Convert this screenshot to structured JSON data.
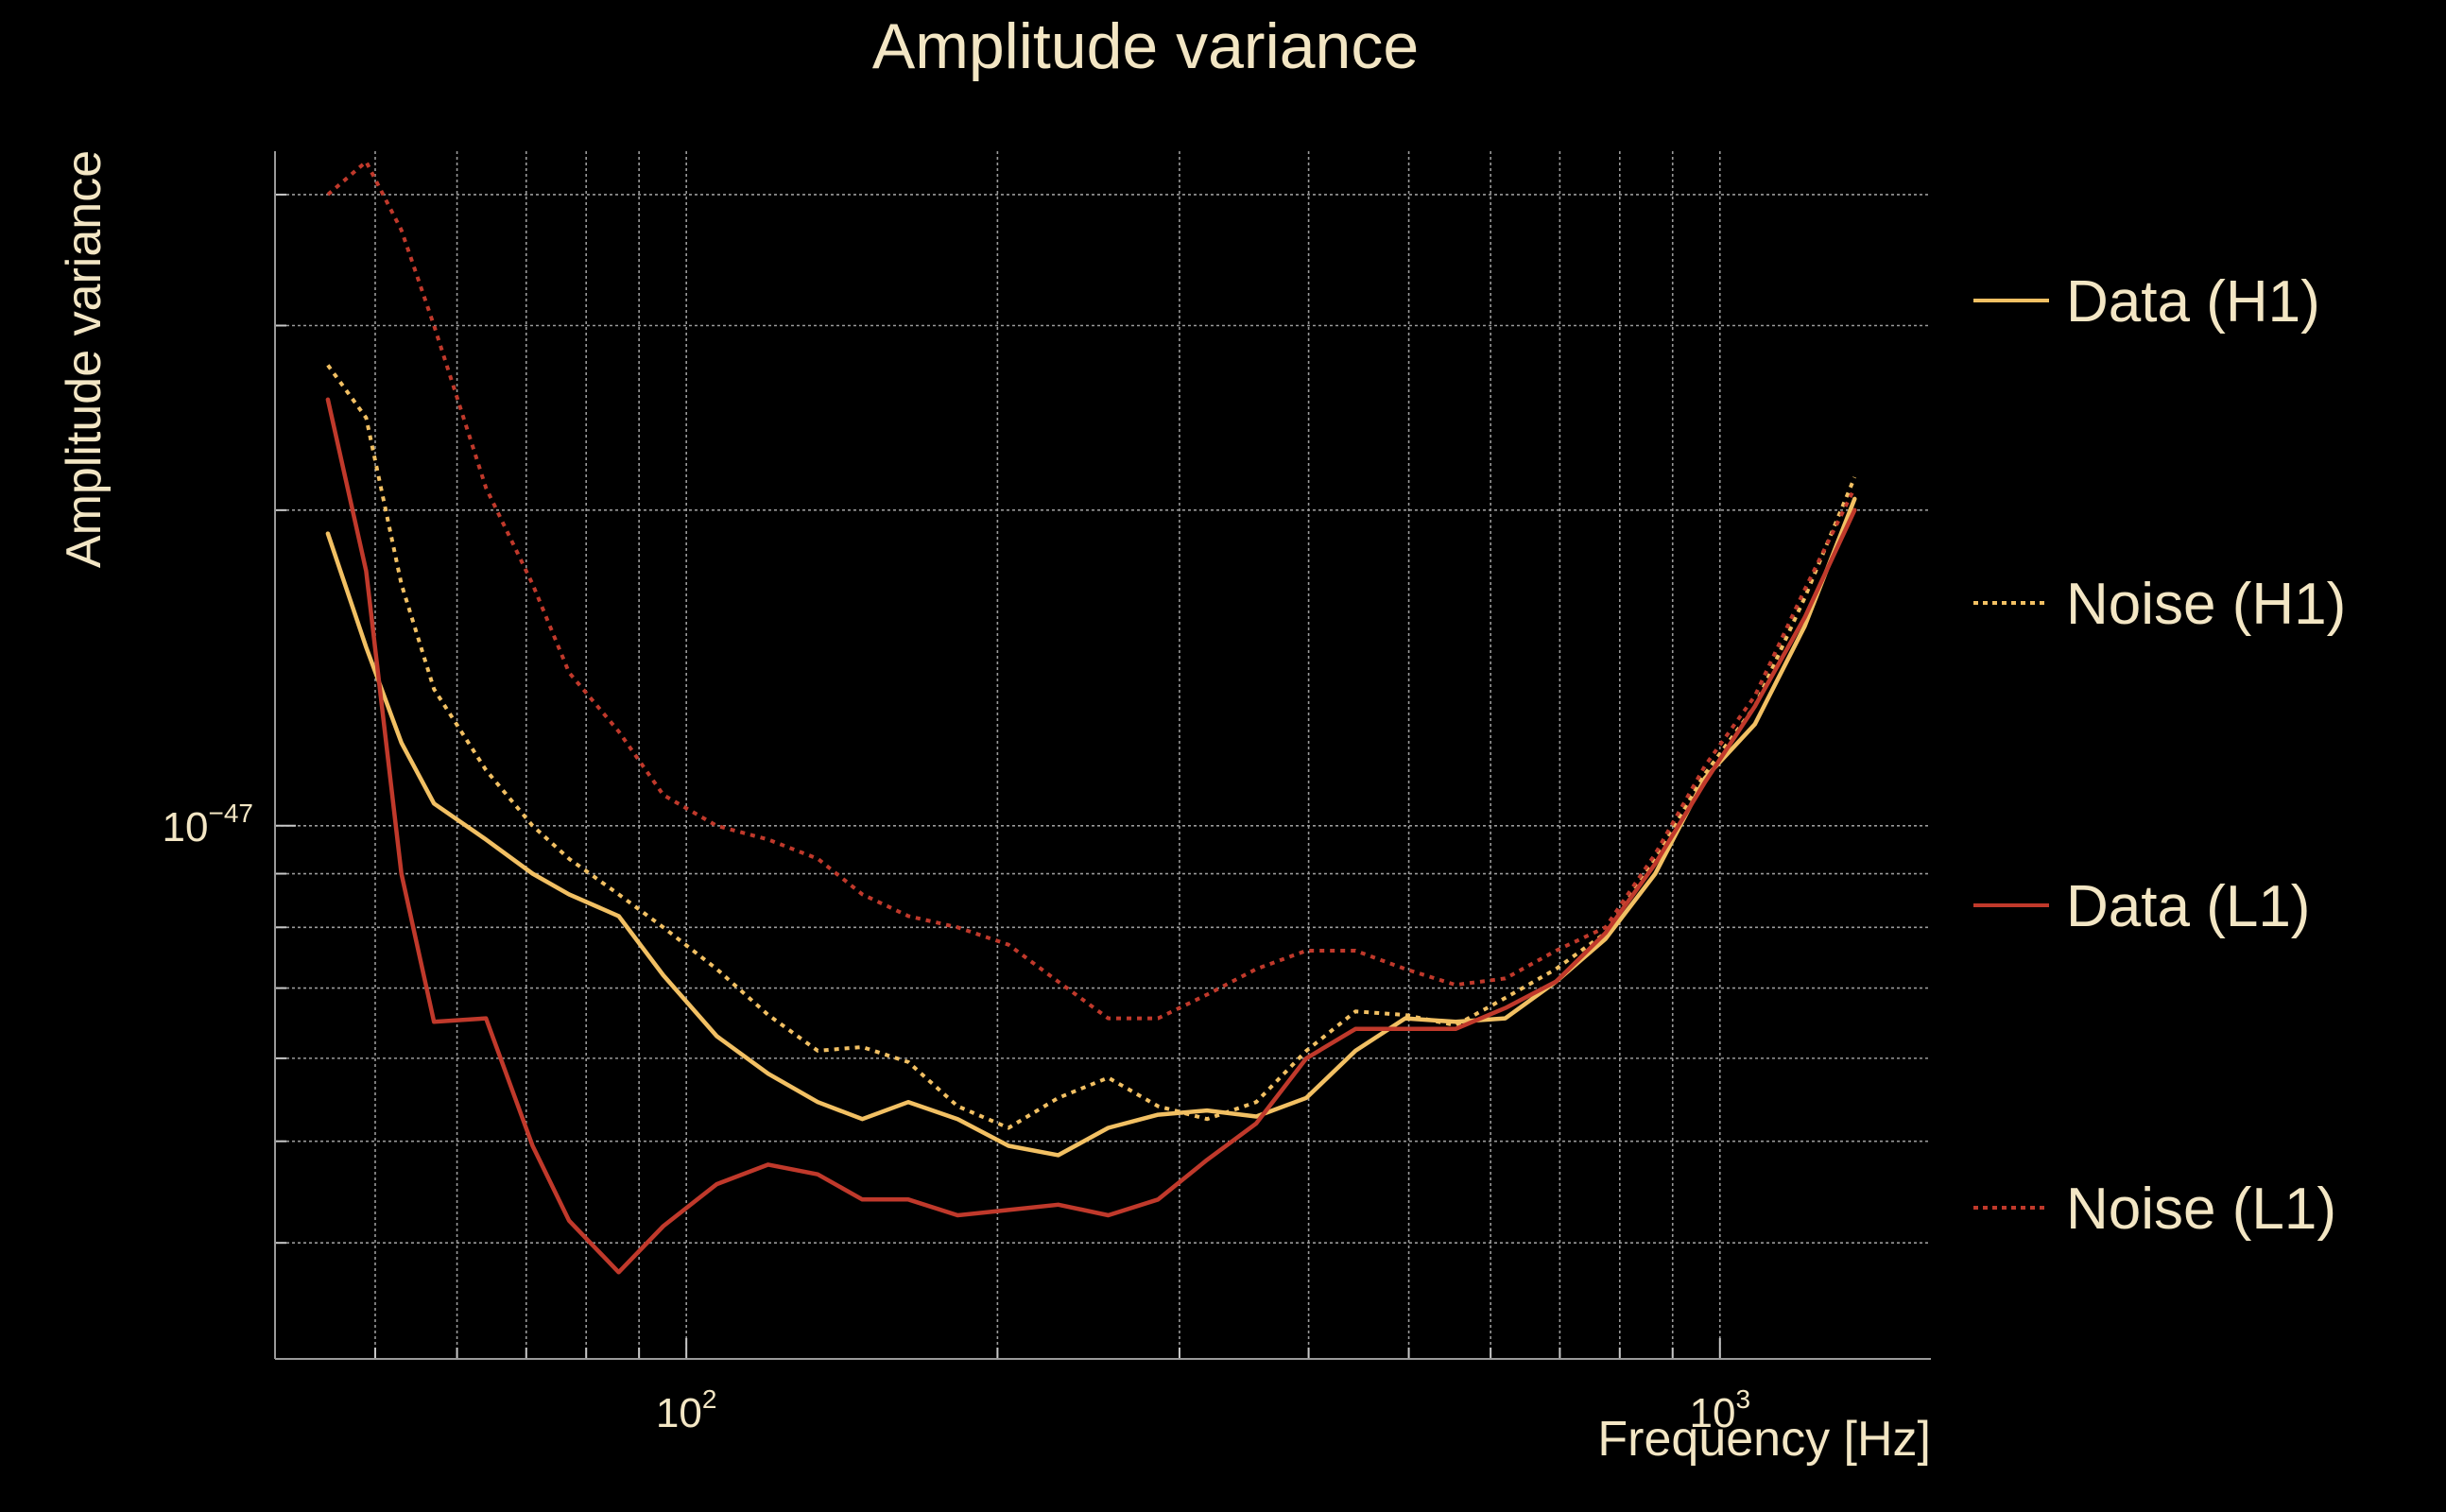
{
  "chart_data": {
    "type": "line",
    "title": "Amplitude variance",
    "xlabel": "Frequency [Hz]",
    "ylabel": "Amplitude variance",
    "xscale": "log",
    "yscale": "log",
    "xlim": [
      40,
      1600
    ],
    "ylim": [
      3.1e-48,
      4.4e-47
    ],
    "x_ticks": [
      {
        "base": "10",
        "exp": "2",
        "value": 100
      },
      {
        "base": "10",
        "exp": "3",
        "value": 1000
      }
    ],
    "y_ticks": [
      {
        "base": "10",
        "exp": "−47",
        "value": 1e-47
      }
    ],
    "grid": true,
    "legend_position": "right",
    "series": [
      {
        "name": "Data (H1)",
        "color": "#f2c063",
        "style": "solid",
        "x": [
          45,
          49,
          53,
          57,
          64,
          71,
          77,
          86,
          95,
          107,
          120,
          134,
          148,
          164,
          183,
          205,
          229,
          256,
          286,
          319,
          356,
          398,
          444,
          496,
          555,
          620,
          694,
          775,
          866,
          967,
          1081,
          1208,
          1350
        ],
        "y": [
          1.9e-47,
          1.48e-47,
          1.2e-47,
          1.05e-47,
          9.7e-48,
          9e-48,
          8.6e-48,
          8.2e-48,
          7.2e-48,
          6.3e-48,
          5.8e-48,
          5.45e-48,
          5.25e-48,
          5.45e-48,
          5.25e-48,
          4.95e-48,
          4.85e-48,
          5.15e-48,
          5.3e-48,
          5.35e-48,
          5.28e-48,
          5.5e-48,
          6.1e-48,
          6.55e-48,
          6.5e-48,
          6.55e-48,
          7.1e-48,
          7.8e-48,
          9e-48,
          1.11e-47,
          1.25e-47,
          1.55e-47,
          2.05e-47
        ]
      },
      {
        "name": "Noise (H1)",
        "color": "#f2c063",
        "style": "dotted",
        "x": [
          45,
          49,
          53,
          57,
          64,
          71,
          77,
          86,
          95,
          107,
          120,
          134,
          148,
          164,
          183,
          205,
          229,
          256,
          286,
          319,
          356,
          398,
          444,
          496,
          555,
          620,
          694,
          775,
          866,
          967,
          1081,
          1208,
          1350
        ],
        "y": [
          2.75e-47,
          2.45e-47,
          1.7e-47,
          1.35e-47,
          1.13e-47,
          1e-47,
          9.3e-48,
          8.6e-48,
          8e-48,
          7.3e-48,
          6.6e-48,
          6.1e-48,
          6.15e-48,
          5.95e-48,
          5.4e-48,
          5.15e-48,
          5.5e-48,
          5.75e-48,
          5.4e-48,
          5.25e-48,
          5.45e-48,
          6.1e-48,
          6.65e-48,
          6.6e-48,
          6.45e-48,
          6.85e-48,
          7.3e-48,
          7.9e-48,
          9.3e-48,
          1.12e-47,
          1.3e-47,
          1.65e-47,
          2.15e-47
        ]
      },
      {
        "name": "Data (L1)",
        "color": "#c0392b",
        "style": "solid",
        "x": [
          45,
          49,
          53,
          57,
          64,
          71,
          77,
          86,
          95,
          107,
          120,
          134,
          148,
          164,
          183,
          205,
          229,
          256,
          286,
          319,
          356,
          398,
          444,
          496,
          555,
          620,
          694,
          775,
          866,
          967,
          1081,
          1208,
          1350
        ],
        "y": [
          2.55e-47,
          1.75e-47,
          9e-48,
          6.5e-48,
          6.55e-48,
          4.95e-48,
          4.2e-48,
          3.75e-48,
          4.15e-48,
          4.55e-48,
          4.75e-48,
          4.65e-48,
          4.4e-48,
          4.4e-48,
          4.25e-48,
          4.3e-48,
          4.35e-48,
          4.25e-48,
          4.4e-48,
          4.8e-48,
          5.2e-48,
          6e-48,
          6.4e-48,
          6.4e-48,
          6.4e-48,
          6.7e-48,
          7.1e-48,
          7.9e-48,
          9.2e-48,
          1.1e-47,
          1.3e-47,
          1.58e-47,
          2e-47
        ]
      },
      {
        "name": "Noise (L1)",
        "color": "#c0392b",
        "style": "dotted",
        "x": [
          45,
          49,
          53,
          57,
          64,
          71,
          77,
          86,
          95,
          107,
          120,
          134,
          148,
          164,
          183,
          205,
          229,
          256,
          286,
          319,
          356,
          398,
          444,
          496,
          555,
          620,
          694,
          775,
          866,
          967,
          1081,
          1208,
          1350
        ],
        "y": [
          4e-47,
          4.3e-47,
          3.7e-47,
          3e-47,
          2.1e-47,
          1.7e-47,
          1.4e-47,
          1.23e-47,
          1.07e-47,
          1e-47,
          9.7e-48,
          9.3e-48,
          8.6e-48,
          8.2e-48,
          8e-48,
          7.7e-48,
          7.1e-48,
          6.55e-48,
          6.55e-48,
          6.9e-48,
          7.3e-48,
          7.6e-48,
          7.6e-48,
          7.3e-48,
          7.05e-48,
          7.15e-48,
          7.6e-48,
          8e-48,
          9.4e-48,
          1.14e-47,
          1.33e-47,
          1.68e-47,
          2.1e-47
        ]
      }
    ]
  }
}
